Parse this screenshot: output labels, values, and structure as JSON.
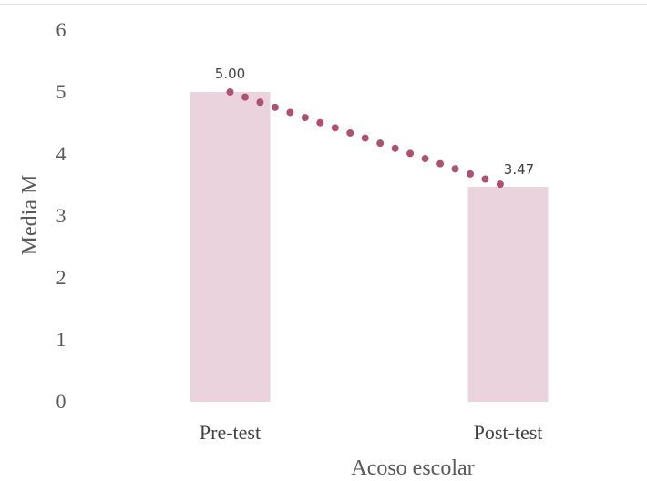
{
  "chart_data": {
    "type": "bar",
    "categories": [
      "Pre-test",
      "Post-test"
    ],
    "values": [
      5.0,
      3.47
    ],
    "data_labels": [
      "5.00",
      "3.47"
    ],
    "xlabel": "Acoso escolar",
    "ylabel": "Media M",
    "ylim": [
      0,
      6
    ],
    "yticks": [
      "0",
      "1",
      "2",
      "3",
      "4",
      "5",
      "6"
    ],
    "grid": false,
    "trendline": {
      "style": "dotted",
      "connects": "bar tops"
    },
    "colors": {
      "bar": "#ead3dc",
      "trend": "#b0506f",
      "frame": "#d9d9d9"
    }
  }
}
